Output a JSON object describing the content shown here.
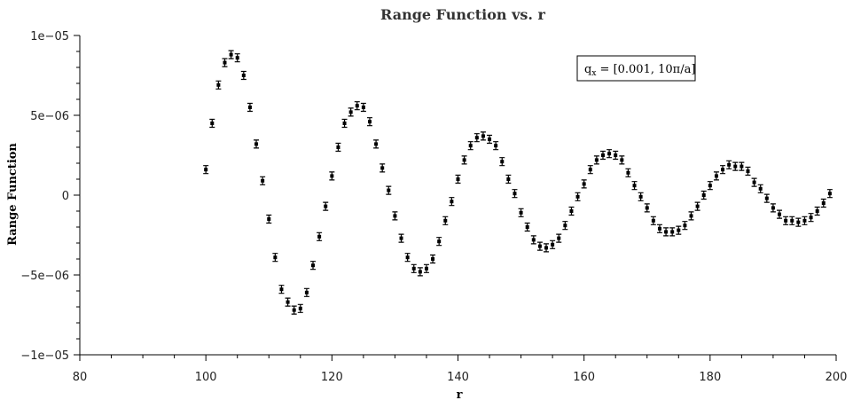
{
  "chart_data": {
    "type": "scatter",
    "title": "Range Function vs. r",
    "xlabel": "r",
    "ylabel": "Range Function",
    "xlim": [
      80,
      200
    ],
    "ylim": [
      -1e-05,
      1e-05
    ],
    "x_ticks": [
      80,
      100,
      120,
      140,
      160,
      180,
      200
    ],
    "x_tick_labels": [
      "80",
      "100",
      "120",
      "140",
      "160",
      "180",
      "200"
    ],
    "y_ticks": [
      -1e-05,
      -5e-06,
      0,
      5e-06,
      1e-05
    ],
    "y_tick_labels": [
      "−1e−05",
      "−5e−06",
      "0",
      "5e−06",
      "1e−05"
    ],
    "grid": false,
    "legend": {
      "text_main": "q",
      "text_sub": "x",
      "text_rest": " = [0.001, 10π/a]",
      "position": "top-right"
    },
    "error_bar": 2.5e-07,
    "x": [
      100,
      101,
      102,
      103,
      104,
      105,
      106,
      107,
      108,
      109,
      110,
      111,
      112,
      113,
      114,
      115,
      116,
      117,
      118,
      119,
      120,
      121,
      122,
      123,
      124,
      125,
      126,
      127,
      128,
      129,
      130,
      131,
      132,
      133,
      134,
      135,
      136,
      137,
      138,
      139,
      140,
      141,
      142,
      143,
      144,
      145,
      146,
      147,
      148,
      149,
      150,
      151,
      152,
      153,
      154,
      155,
      156,
      157,
      158,
      159,
      160,
      161,
      162,
      163,
      164,
      165,
      166,
      167,
      168,
      169,
      170,
      171,
      172,
      173,
      174,
      175,
      176,
      177,
      178,
      179,
      180,
      181,
      182,
      183,
      184,
      185,
      186,
      187,
      188,
      189,
      190,
      191,
      192,
      193,
      194,
      195,
      196,
      197,
      198,
      199
    ],
    "y": [
      1.6e-06,
      4.5e-06,
      6.9e-06,
      8.3e-06,
      8.8e-06,
      8.6e-06,
      7.5e-06,
      5.5e-06,
      3.2e-06,
      9e-07,
      -1.5e-06,
      -3.9e-06,
      -5.9e-06,
      -6.7e-06,
      -7.2e-06,
      -7.1e-06,
      -6.1e-06,
      -4.4e-06,
      -2.6e-06,
      -7e-07,
      1.2e-06,
      3e-06,
      4.5e-06,
      5.2e-06,
      5.6e-06,
      5.5e-06,
      4.6e-06,
      3.2e-06,
      1.7e-06,
      3e-07,
      -1.3e-06,
      -2.7e-06,
      -3.9e-06,
      -4.6e-06,
      -4.8e-06,
      -4.6e-06,
      -4e-06,
      -2.9e-06,
      -1.6e-06,
      -4e-07,
      1e-06,
      2.2e-06,
      3.1e-06,
      3.6e-06,
      3.7e-06,
      3.5e-06,
      3.1e-06,
      2.1e-06,
      1e-06,
      1e-07,
      -1.1e-06,
      -2e-06,
      -2.8e-06,
      -3.2e-06,
      -3.3e-06,
      -3.1e-06,
      -2.7e-06,
      -1.9e-06,
      -1e-06,
      -1e-07,
      7e-07,
      1.6e-06,
      2.2e-06,
      2.5e-06,
      2.6e-06,
      2.5e-06,
      2.2e-06,
      1.4e-06,
      6e-07,
      -1e-07,
      -8e-07,
      -1.6e-06,
      -2.1e-06,
      -2.3e-06,
      -2.3e-06,
      -2.2e-06,
      -1.9e-06,
      -1.3e-06,
      -7e-07,
      0,
      6e-07,
      1.2e-06,
      1.6e-06,
      1.9e-06,
      1.8e-06,
      1.8e-06,
      1.5e-06,
      8e-07,
      4e-07,
      -2e-07,
      -8e-07,
      -1.2e-06,
      -1.6e-06,
      -1.6e-06,
      -1.7e-06,
      -1.6e-06,
      -1.4e-06,
      -1e-06,
      -5e-07,
      1e-07
    ]
  }
}
